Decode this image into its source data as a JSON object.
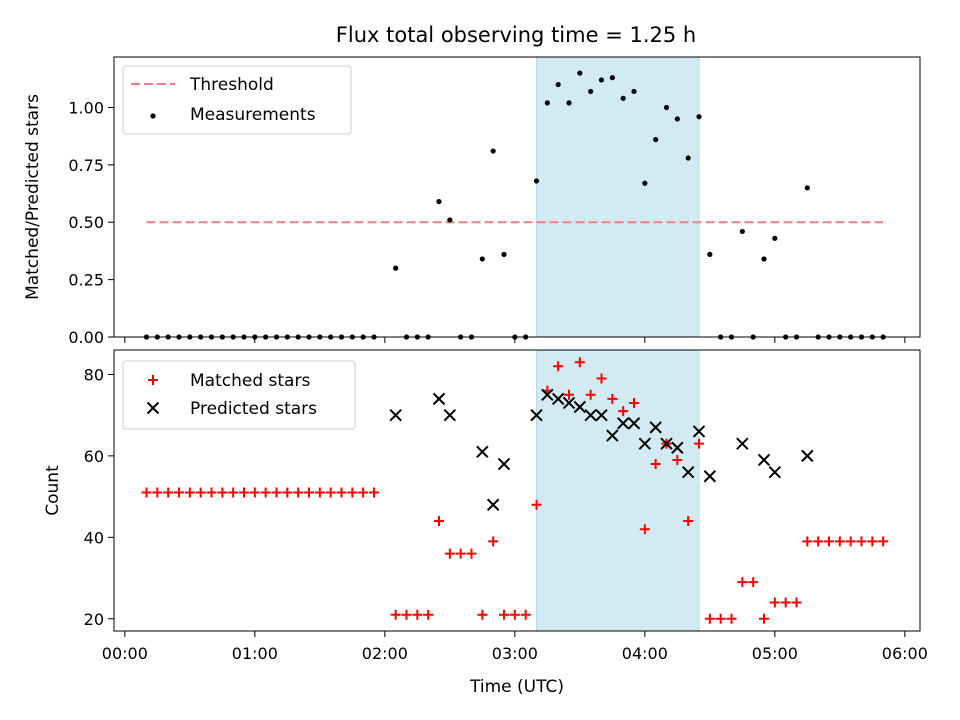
{
  "figure": {
    "title": "Flux total observing time = 1.25 h",
    "xlabel": "Time (UTC)",
    "highlight_span": [
      "03:10",
      "04:25"
    ]
  },
  "colors": {
    "threshold": "#f08080",
    "measurements": "#000000",
    "matched": "#ff0000",
    "predicted": "#000000",
    "highlight": "#add8e6"
  },
  "chart_data": [
    {
      "type": "scatter",
      "ylabel": "Matched/Predicted stars",
      "ylim": [
        0,
        1.22
      ],
      "xlim": [
        "-00:05",
        "06:07"
      ],
      "yticks": [
        0,
        0.25,
        0.5,
        0.75,
        1.0
      ],
      "ytick_labels": [
        "0.00",
        "0.25",
        "0.50",
        "0.75",
        "1.00"
      ],
      "legend_position": "upper left",
      "threshold": {
        "name": "Threshold",
        "y": 0.5,
        "x_range": [
          "00:10",
          "05:50"
        ]
      },
      "series": [
        {
          "name": "Measurements",
          "points": [
            [
              "00:10",
              0
            ],
            [
              "00:15",
              0
            ],
            [
              "00:20",
              0
            ],
            [
              "00:25",
              0
            ],
            [
              "00:30",
              0
            ],
            [
              "00:35",
              0
            ],
            [
              "00:40",
              0
            ],
            [
              "00:45",
              0
            ],
            [
              "00:50",
              0
            ],
            [
              "00:55",
              0
            ],
            [
              "01:00",
              0
            ],
            [
              "01:05",
              0
            ],
            [
              "01:10",
              0
            ],
            [
              "01:15",
              0
            ],
            [
              "01:20",
              0
            ],
            [
              "01:25",
              0
            ],
            [
              "01:30",
              0
            ],
            [
              "01:35",
              0
            ],
            [
              "01:40",
              0
            ],
            [
              "01:45",
              0
            ],
            [
              "01:50",
              0
            ],
            [
              "01:55",
              0
            ],
            [
              "02:05",
              0.3
            ],
            [
              "02:10",
              0
            ],
            [
              "02:15",
              0
            ],
            [
              "02:20",
              0
            ],
            [
              "02:25",
              0.59
            ],
            [
              "02:30",
              0.51
            ],
            [
              "02:35",
              0
            ],
            [
              "02:40",
              0
            ],
            [
              "02:45",
              0.34
            ],
            [
              "02:50",
              0.81
            ],
            [
              "02:55",
              0.36
            ],
            [
              "03:00",
              0
            ],
            [
              "03:05",
              0
            ],
            [
              "03:10",
              0.68
            ],
            [
              "03:15",
              1.02
            ],
            [
              "03:20",
              1.1
            ],
            [
              "03:25",
              1.02
            ],
            [
              "03:30",
              1.15
            ],
            [
              "03:35",
              1.07
            ],
            [
              "03:40",
              1.12
            ],
            [
              "03:45",
              1.13
            ],
            [
              "03:50",
              1.04
            ],
            [
              "03:55",
              1.07
            ],
            [
              "04:00",
              0.67
            ],
            [
              "04:05",
              0.86
            ],
            [
              "04:10",
              1.0
            ],
            [
              "04:15",
              0.95
            ],
            [
              "04:20",
              0.78
            ],
            [
              "04:25",
              0.96
            ],
            [
              "04:30",
              0.36
            ],
            [
              "04:35",
              0
            ],
            [
              "04:40",
              0
            ],
            [
              "04:45",
              0.46
            ],
            [
              "04:50",
              0
            ],
            [
              "04:55",
              0.34
            ],
            [
              "05:00",
              0.43
            ],
            [
              "05:05",
              0
            ],
            [
              "05:10",
              0
            ],
            [
              "05:15",
              0.65
            ],
            [
              "05:20",
              0
            ],
            [
              "05:25",
              0
            ],
            [
              "05:30",
              0
            ],
            [
              "05:35",
              0
            ],
            [
              "05:40",
              0
            ],
            [
              "05:45",
              0
            ],
            [
              "05:50",
              0
            ]
          ]
        }
      ]
    },
    {
      "type": "scatter",
      "ylabel": "Count",
      "ylim": [
        17,
        86
      ],
      "xlim": [
        "-00:05",
        "06:07"
      ],
      "yticks": [
        20,
        40,
        60,
        80
      ],
      "ytick_labels": [
        "20",
        "40",
        "60",
        "80"
      ],
      "xticks": [
        "00:00",
        "01:00",
        "02:00",
        "03:00",
        "04:00",
        "05:00",
        "06:00"
      ],
      "xtick_labels": [
        "00:00",
        "01:00",
        "02:00",
        "03:00",
        "04:00",
        "05:00",
        "06:00"
      ],
      "legend_position": "upper left",
      "series": [
        {
          "name": "Matched stars",
          "marker": "plus",
          "points": [
            [
              "00:10",
              51
            ],
            [
              "00:15",
              51
            ],
            [
              "00:20",
              51
            ],
            [
              "00:25",
              51
            ],
            [
              "00:30",
              51
            ],
            [
              "00:35",
              51
            ],
            [
              "00:40",
              51
            ],
            [
              "00:45",
              51
            ],
            [
              "00:50",
              51
            ],
            [
              "00:55",
              51
            ],
            [
              "01:00",
              51
            ],
            [
              "01:05",
              51
            ],
            [
              "01:10",
              51
            ],
            [
              "01:15",
              51
            ],
            [
              "01:20",
              51
            ],
            [
              "01:25",
              51
            ],
            [
              "01:30",
              51
            ],
            [
              "01:35",
              51
            ],
            [
              "01:40",
              51
            ],
            [
              "01:45",
              51
            ],
            [
              "01:50",
              51
            ],
            [
              "01:55",
              51
            ],
            [
              "02:05",
              21
            ],
            [
              "02:10",
              21
            ],
            [
              "02:15",
              21
            ],
            [
              "02:20",
              21
            ],
            [
              "02:25",
              44
            ],
            [
              "02:30",
              36
            ],
            [
              "02:35",
              36
            ],
            [
              "02:40",
              36
            ],
            [
              "02:45",
              21
            ],
            [
              "02:50",
              39
            ],
            [
              "02:55",
              21
            ],
            [
              "03:00",
              21
            ],
            [
              "03:05",
              21
            ],
            [
              "03:10",
              48
            ],
            [
              "03:15",
              76
            ],
            [
              "03:20",
              82
            ],
            [
              "03:25",
              75
            ],
            [
              "03:30",
              83
            ],
            [
              "03:35",
              75
            ],
            [
              "03:40",
              79
            ],
            [
              "03:45",
              74
            ],
            [
              "03:50",
              71
            ],
            [
              "03:55",
              73
            ],
            [
              "04:00",
              42
            ],
            [
              "04:05",
              58
            ],
            [
              "04:10",
              63
            ],
            [
              "04:15",
              59
            ],
            [
              "04:20",
              44
            ],
            [
              "04:25",
              63
            ],
            [
              "04:30",
              20
            ],
            [
              "04:35",
              20
            ],
            [
              "04:40",
              20
            ],
            [
              "04:45",
              29
            ],
            [
              "04:50",
              29
            ],
            [
              "04:55",
              20
            ],
            [
              "05:00",
              24
            ],
            [
              "05:05",
              24
            ],
            [
              "05:10",
              24
            ],
            [
              "05:15",
              39
            ],
            [
              "05:20",
              39
            ],
            [
              "05:25",
              39
            ],
            [
              "05:30",
              39
            ],
            [
              "05:35",
              39
            ],
            [
              "05:40",
              39
            ],
            [
              "05:45",
              39
            ],
            [
              "05:50",
              39
            ]
          ]
        },
        {
          "name": "Predicted stars",
          "marker": "x",
          "points": [
            [
              "02:05",
              70
            ],
            [
              "02:25",
              74
            ],
            [
              "02:30",
              70
            ],
            [
              "02:45",
              61
            ],
            [
              "02:50",
              48
            ],
            [
              "02:55",
              58
            ],
            [
              "03:10",
              70
            ],
            [
              "03:15",
              75
            ],
            [
              "03:20",
              74
            ],
            [
              "03:25",
              73
            ],
            [
              "03:30",
              72
            ],
            [
              "03:35",
              70
            ],
            [
              "03:40",
              70
            ],
            [
              "03:45",
              65
            ],
            [
              "03:50",
              68
            ],
            [
              "03:55",
              68
            ],
            [
              "04:00",
              63
            ],
            [
              "04:05",
              67
            ],
            [
              "04:10",
              63
            ],
            [
              "04:15",
              62
            ],
            [
              "04:20",
              56
            ],
            [
              "04:25",
              66
            ],
            [
              "04:30",
              55
            ],
            [
              "04:45",
              63
            ],
            [
              "04:55",
              59
            ],
            [
              "05:00",
              56
            ],
            [
              "05:15",
              60
            ]
          ]
        }
      ]
    }
  ]
}
